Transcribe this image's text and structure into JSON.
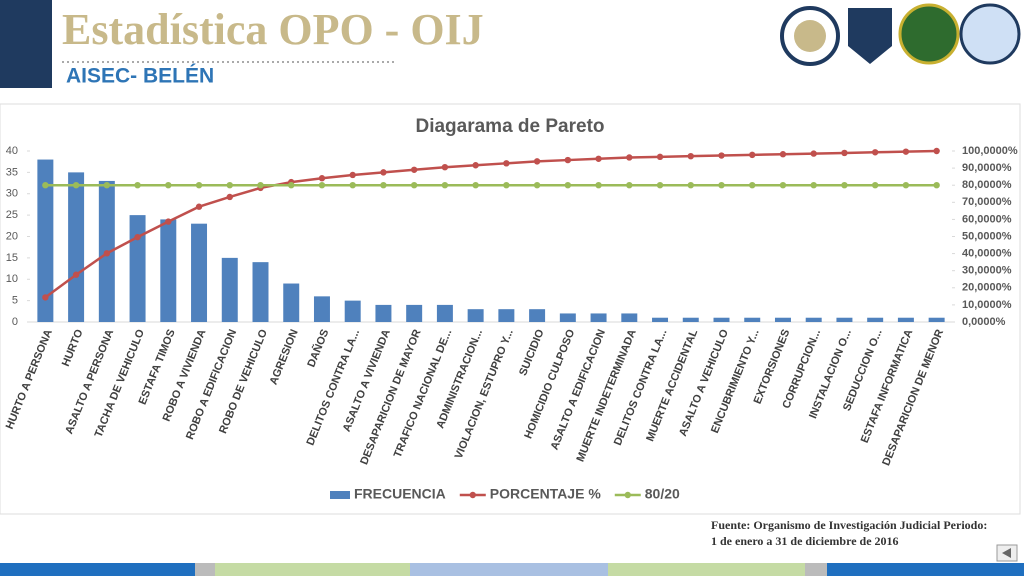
{
  "slide": {
    "title": "Estadística OPO - OIJ",
    "subtitle": "AISEC- BELÉN",
    "source": [
      "Fuente: Organismo de Investigación Judicial Periodo:",
      "1 de enero a 31 de diciembre de 2016"
    ]
  },
  "chart_data": {
    "type": "pareto",
    "title": "Diagarama de Pareto",
    "categories": [
      "HURTO A PERSONA",
      "HURTO",
      "ASALTO A PERSONA",
      "TACHA DE VEHICULO",
      "ESTAFA TIMOS",
      "ROBO A VIVIENDA",
      "ROBO A EDIFICACION",
      "ROBO DE VEHICULO",
      "AGRESION",
      "DAÑOS",
      "DELITOS CONTRA LA...",
      "ASALTO A VIVIENDA",
      "DESAPARICION DE MAYOR",
      "TRAFICO NACIONAL DE...",
      "ADMINISTRACION...",
      "VIOLACION, ESTUPRO Y...",
      "SUICIDIO",
      "HOMICIDIO CULPOSO",
      "ASALTO A EDIFICACION",
      "MUERTE INDETERMINADA",
      "DELITOS CONTRA LA...",
      "MUERTE ACCIDENTAL",
      "ASALTO A VEHICULO",
      "ENCUBRIMIENTO Y...",
      "EXTORSIONES",
      "CORRUPCION...",
      "INSTALACION O...",
      "SEDUCCION O...",
      "ESTAFA INFORMATICA",
      "DESAPARICION DE MENOR"
    ],
    "series": [
      {
        "name": "FRECUENCIA",
        "color": "#4f81bd",
        "kind": "bar",
        "values": [
          38,
          35,
          33,
          25,
          24,
          23,
          15,
          14,
          9,
          6,
          5,
          4,
          4,
          4,
          3,
          3,
          3,
          2,
          2,
          2,
          1,
          1,
          1,
          1,
          1,
          1,
          1,
          1,
          1,
          1
        ]
      },
      {
        "name": "PORCENTAJE %",
        "color": "#c0504d",
        "kind": "line",
        "axis": "y2",
        "values": [
          14.39,
          27.65,
          40.15,
          49.62,
          58.71,
          67.42,
          73.11,
          78.41,
          81.82,
          84.09,
          85.98,
          87.5,
          89.02,
          90.53,
          91.67,
          92.8,
          93.94,
          94.7,
          95.45,
          96.21,
          96.59,
          96.97,
          97.35,
          97.73,
          98.11,
          98.48,
          98.86,
          99.24,
          99.62,
          100
        ]
      },
      {
        "name": "80/20",
        "color": "#9bbb59",
        "kind": "line",
        "axis": "y2",
        "values": [
          80,
          80,
          80,
          80,
          80,
          80,
          80,
          80,
          80,
          80,
          80,
          80,
          80,
          80,
          80,
          80,
          80,
          80,
          80,
          80,
          80,
          80,
          80,
          80,
          80,
          80,
          80,
          80,
          80,
          80
        ]
      }
    ],
    "ylim": [
      0,
      40
    ],
    "yticks": [
      0,
      5,
      10,
      15,
      20,
      25,
      30,
      35,
      40
    ],
    "y2lim": [
      0,
      100
    ],
    "y2ticks": [
      {
        "value": 0,
        "label": "0,0000%"
      },
      {
        "value": 10,
        "label": "10,0000%"
      },
      {
        "value": 20,
        "label": "20,0000%"
      },
      {
        "value": 30,
        "label": "30,0000%"
      },
      {
        "value": 40,
        "label": "40,0000%"
      },
      {
        "value": 50,
        "label": "50,0000%"
      },
      {
        "value": 60,
        "label": "60,0000%"
      },
      {
        "value": 70,
        "label": "70,0000%"
      },
      {
        "value": 80,
        "label": "80,0000%"
      },
      {
        "value": 90,
        "label": "90,0000%"
      },
      {
        "value": 100,
        "label": "100,0000%"
      }
    ],
    "legend": "bottom"
  }
}
